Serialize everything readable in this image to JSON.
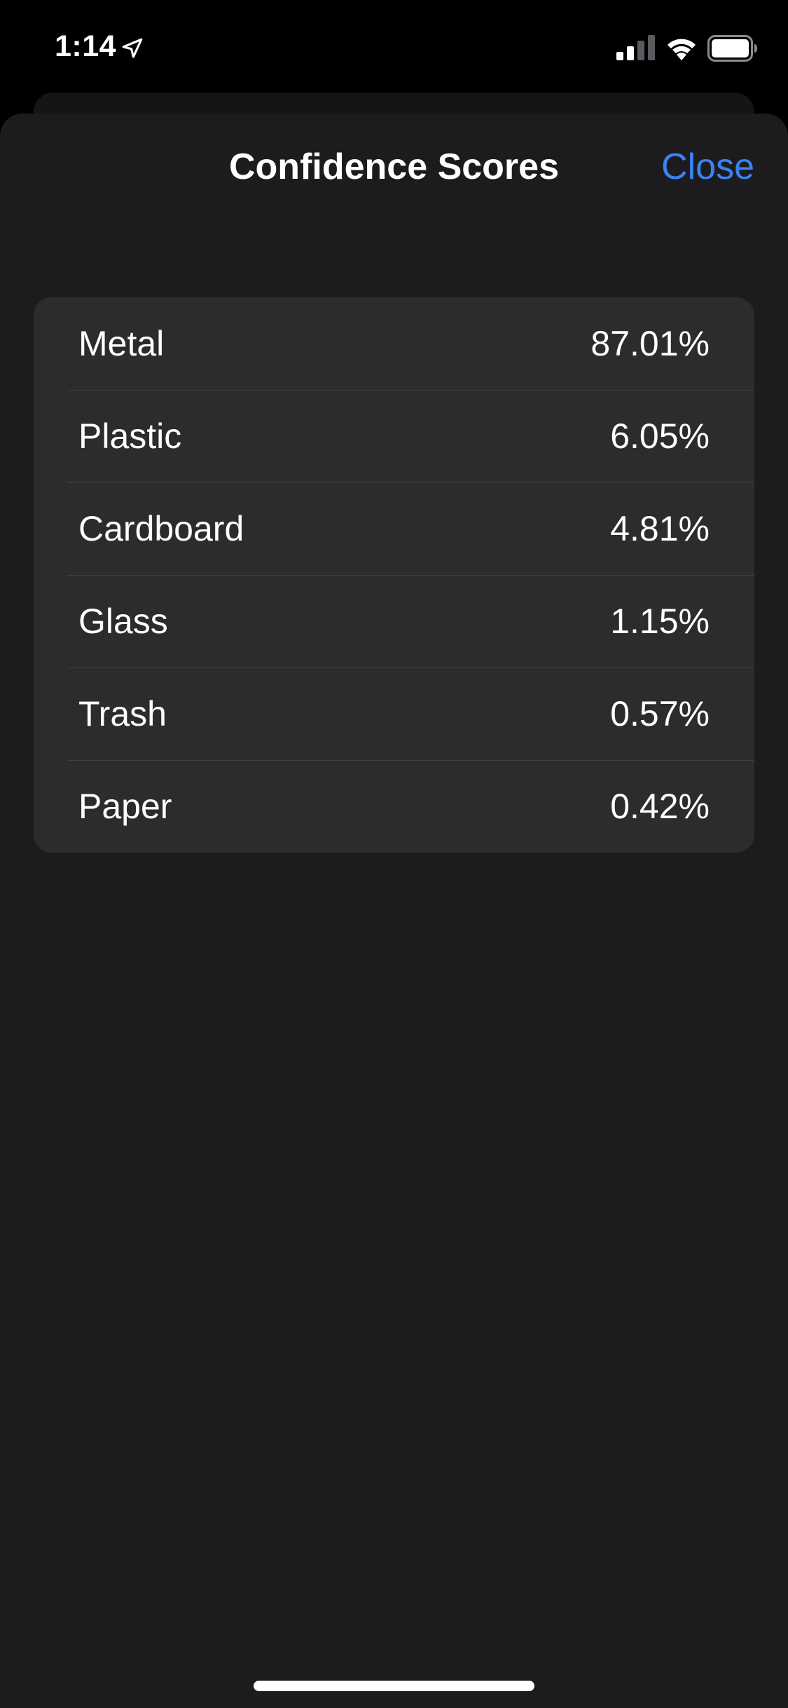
{
  "status_bar": {
    "time": "1:14",
    "icons": [
      "location-arrow-icon",
      "cellular-signal-icon",
      "wifi-icon",
      "battery-icon"
    ]
  },
  "sheet": {
    "title": "Confidence Scores",
    "close_label": "Close"
  },
  "scores": [
    {
      "label": "Metal",
      "value": "87.01%"
    },
    {
      "label": "Plastic",
      "value": "6.05%"
    },
    {
      "label": "Cardboard",
      "value": "4.81%"
    },
    {
      "label": "Glass",
      "value": "1.15%"
    },
    {
      "label": "Trash",
      "value": "0.57%"
    },
    {
      "label": "Paper",
      "value": "0.42%"
    }
  ],
  "colors": {
    "accent": "#3b82f6",
    "sheet_background": "#1c1c1e",
    "list_background": "#2c2c2e",
    "screen_background": "#000000"
  }
}
